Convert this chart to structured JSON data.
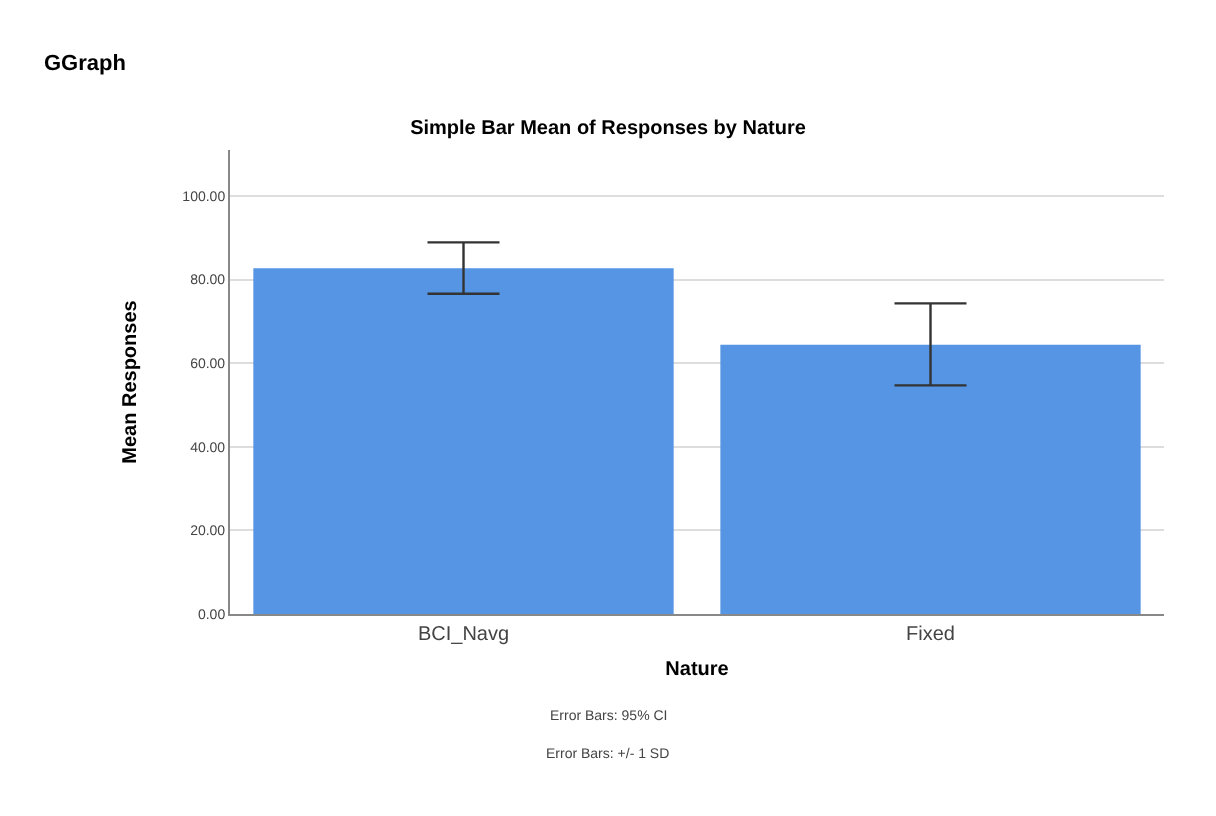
{
  "chart_data": {
    "type": "bar",
    "title": "Simple Bar Mean of Responses by Nature",
    "xlabel": "Nature",
    "ylabel": "Mean Responses",
    "categories": [
      "BCI_Navg",
      "Fixed"
    ],
    "values": [
      82.7,
      64.4
    ],
    "errors": [
      [
        76.6,
        88.9
      ],
      [
        54.7,
        74.3
      ]
    ],
    "color": "#5595e3",
    "ylim": [
      0,
      111
    ],
    "yticks": [
      {
        "value": 0,
        "label": "0.00"
      },
      {
        "value": 20,
        "label": "20.00"
      },
      {
        "value": 40,
        "label": "40.00"
      },
      {
        "value": 60,
        "label": "60.00"
      },
      {
        "value": 80,
        "label": "80.00"
      },
      {
        "value": 100,
        "label": "100.00"
      }
    ],
    "grid": "y",
    "annotations": [
      "GGraph",
      "Error Bars: 95% CI",
      "Error Bars: +/- 1 SD"
    ]
  }
}
